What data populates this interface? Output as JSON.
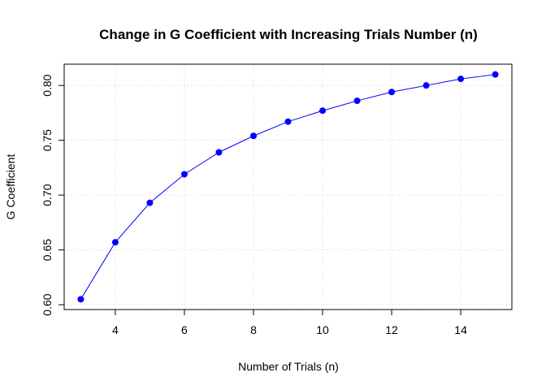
{
  "chart_data": {
    "type": "line",
    "title": "Change in G Coefficient with Increasing Trials Number (n)",
    "xlabel": "Number of Trials (n)",
    "ylabel": "G Coefficient",
    "xlim": [
      2.52,
      15.48
    ],
    "ylim": [
      0.5956,
      0.8194
    ],
    "xticks": [
      4,
      6,
      8,
      10,
      12,
      14
    ],
    "yticks": [
      0.6,
      0.65,
      0.7,
      0.75,
      0.8
    ],
    "xtick_labels": [
      "4",
      "6",
      "8",
      "10",
      "12",
      "14"
    ],
    "ytick_labels": [
      "0.60",
      "0.65",
      "0.70",
      "0.75",
      "0.80"
    ],
    "grid": true,
    "series": [
      {
        "color": "#0000ff",
        "marker": "filled-circle",
        "x": [
          3,
          4,
          5,
          6,
          7,
          8,
          9,
          10,
          11,
          12,
          13,
          14,
          15
        ],
        "y": [
          0.605,
          0.657,
          0.693,
          0.719,
          0.739,
          0.754,
          0.767,
          0.777,
          0.786,
          0.794,
          0.8,
          0.806,
          0.81
        ]
      }
    ]
  }
}
